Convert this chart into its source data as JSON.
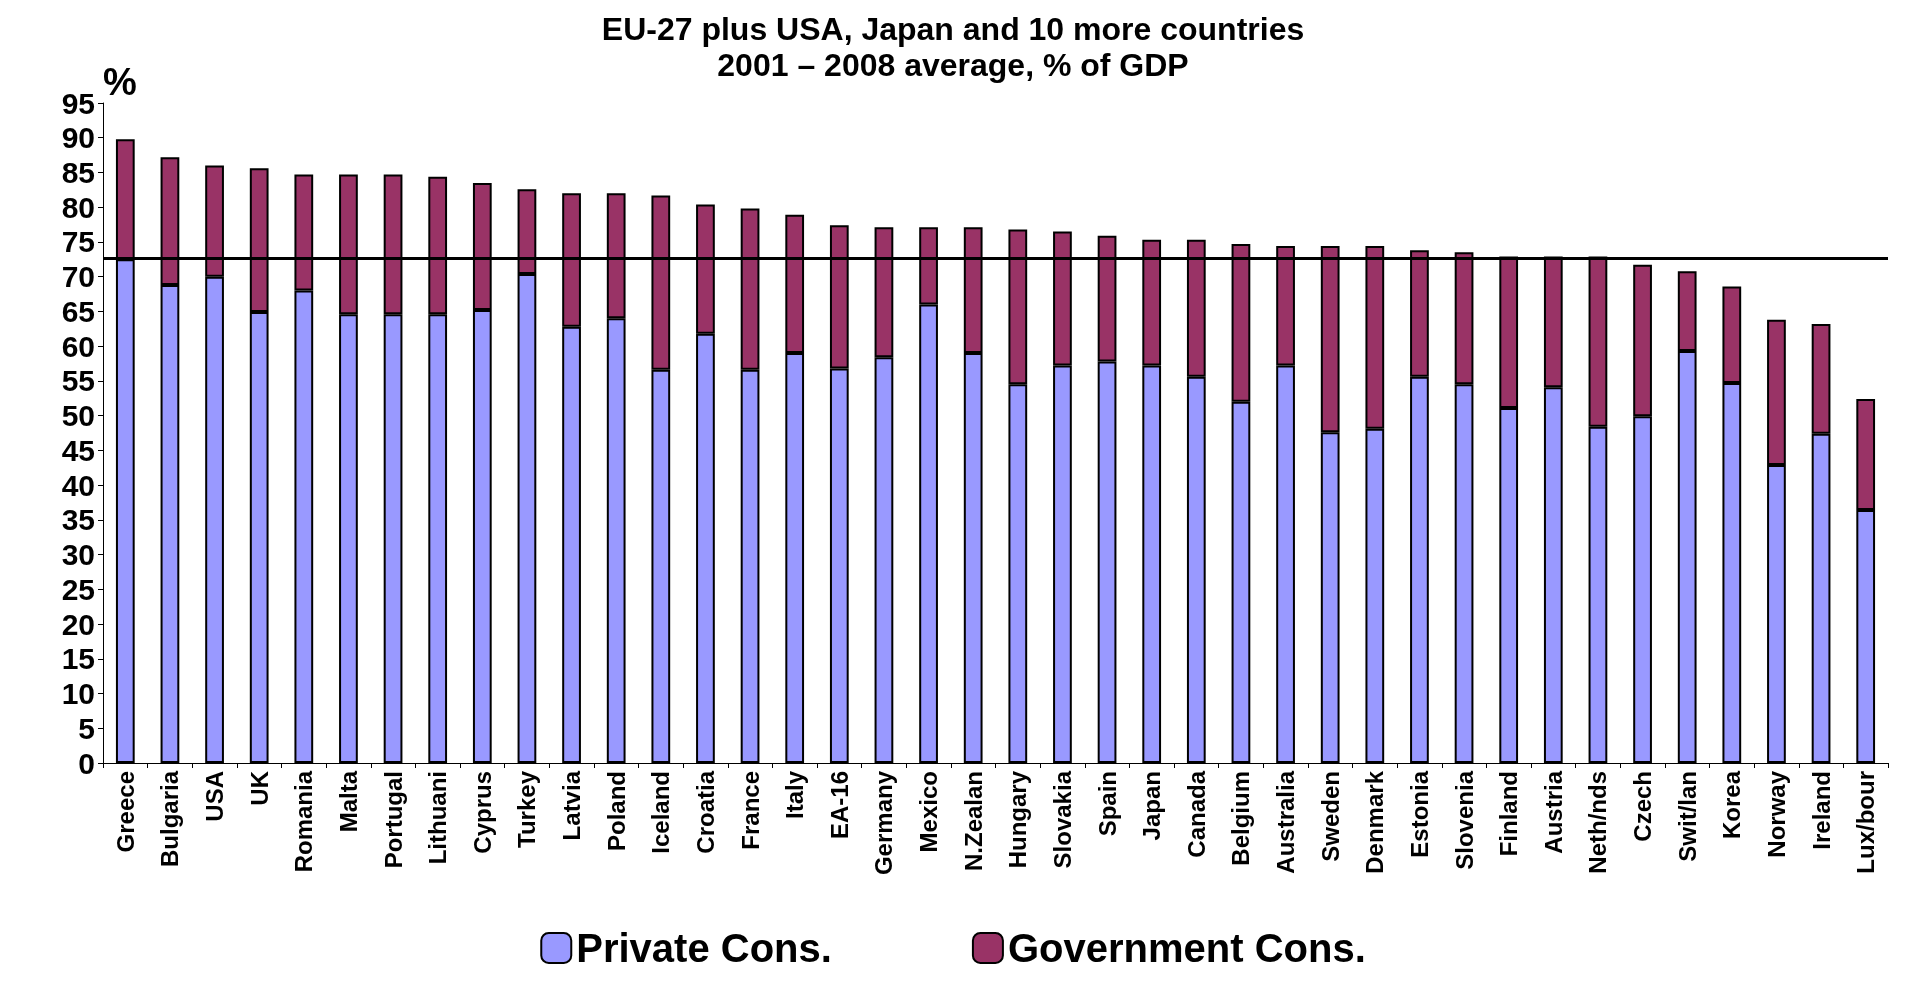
{
  "chart_data": {
    "type": "bar",
    "title": "EU-27 plus USA, Japan and 10 more countries",
    "subtitle": "2001 – 2008 average, % of GDP",
    "ylabel": "%",
    "categories": [
      "Greece",
      "Bulgaria",
      "USA",
      "UK",
      "Romania",
      "Malta",
      "Portugal",
      "Lithuani",
      "Cyprus",
      "Turkey",
      "Latvia",
      "Poland",
      "Iceland",
      "Croatia",
      "France",
      "Italy",
      "EA-16",
      "Germany",
      "Mexico",
      "N.Zealan",
      "Hungary",
      "Slovakia",
      "Spain",
      "Japan",
      "Canada",
      "Belgium",
      "Australia",
      "Sweden",
      "Denmark",
      "Estonia",
      "Slovenia",
      "Finland",
      "Austria",
      "Neth/nds",
      "Czech",
      "Swit/lan",
      "Korea",
      "Norway",
      "Ireland",
      "Lux/bour"
    ],
    "stacked": true,
    "series": [
      {
        "name": "Private Cons.",
        "color": "#9999ff",
        "values": [
          72.5,
          68.8,
          70,
          64.9,
          68,
          64.6,
          64.6,
          64.6,
          65.2,
          70.4,
          62.8,
          64,
          56.6,
          61.8,
          56.6,
          59,
          56.8,
          58.4,
          66,
          59,
          54.5,
          57.2,
          57.8,
          57.2,
          55.6,
          52,
          57.2,
          47.6,
          48.1,
          55.6,
          54.5,
          51.1,
          54.1,
          48.4,
          49.9,
          59.3,
          54.7,
          42.9,
          47.4,
          36.4
        ]
      },
      {
        "name": "Government Cons.",
        "color": "#993366",
        "values": [
          17.3,
          18.4,
          16,
          20.7,
          16.7,
          20.1,
          20.1,
          19.8,
          18.3,
          12.2,
          19.2,
          18,
          25.1,
          18.6,
          23.2,
          19.9,
          20.6,
          18.7,
          11.1,
          18.1,
          22.3,
          19.3,
          18.1,
          18.1,
          19.7,
          22.7,
          17.2,
          26.8,
          26.3,
          18.2,
          19,
          21.8,
          18.8,
          24.5,
          21.8,
          11.5,
          13.9,
          20.9,
          15.8,
          16
        ]
      }
    ],
    "ylim": [
      0,
      95
    ],
    "yticks": [
      0,
      5,
      10,
      15,
      20,
      25,
      30,
      35,
      40,
      45,
      50,
      55,
      60,
      65,
      70,
      75,
      80,
      85,
      90,
      95
    ],
    "ref_lines": [
      {
        "axis": "y",
        "value": 72.7,
        "color": "#000000",
        "line_style": "solid"
      }
    ],
    "legend": "bottom",
    "grid": false
  }
}
